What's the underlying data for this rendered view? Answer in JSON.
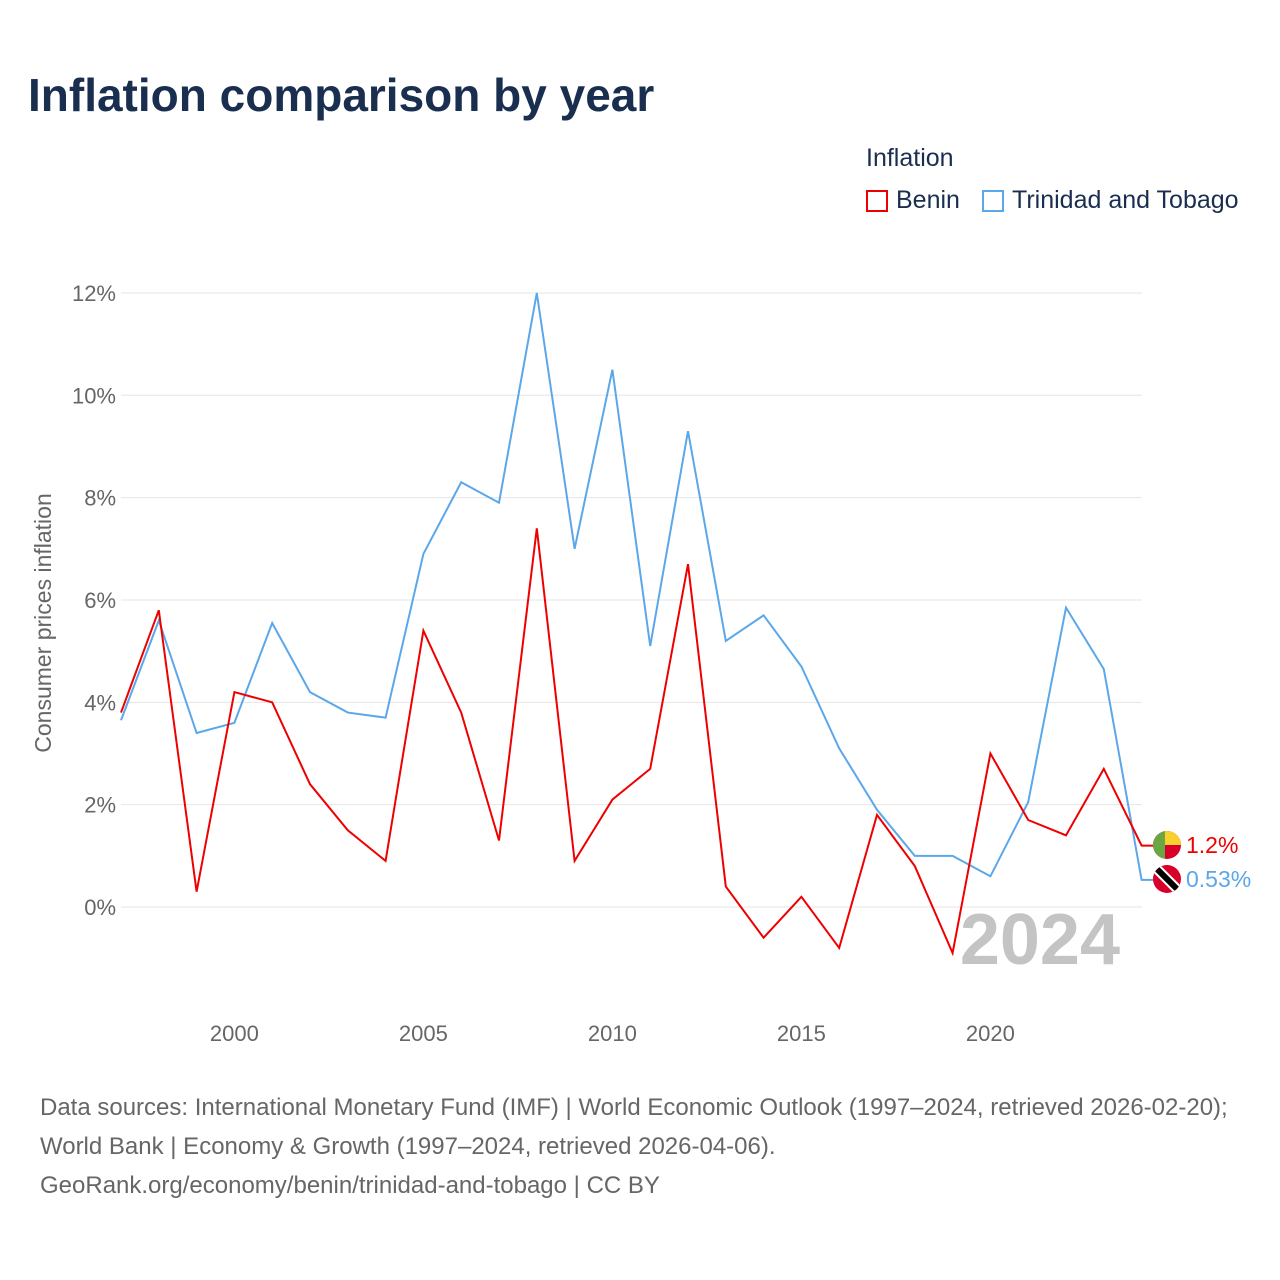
{
  "title": "Inflation comparison by year",
  "legend": {
    "title": "Inflation",
    "items": [
      "Benin",
      "Trinidad and Tobago"
    ]
  },
  "year_label": "2024",
  "source_lines": [
    "Data sources: International Monetary Fund (IMF) | World Economic Outlook (1997–2024, retrieved 2026-02-20); World Bank | Economy & Growth (1997–2024, retrieved 2026-04-06).",
    "GeoRank.org/economy/benin/trinidad-and-tobago | CC BY"
  ],
  "chart_data": {
    "type": "line",
    "ylabel": "Consumer prices inflation",
    "ylim": [
      -1.9,
      13
    ],
    "xlim": [
      1997,
      2024
    ],
    "yticks": [
      0,
      2,
      4,
      6,
      8,
      10,
      12
    ],
    "ytick_labels": [
      "0%",
      "2%",
      "4%",
      "6%",
      "8%",
      "10%",
      "12%"
    ],
    "xticks": [
      2000,
      2005,
      2010,
      2015,
      2020
    ],
    "x": [
      1997,
      1998,
      1999,
      2000,
      2001,
      2002,
      2003,
      2004,
      2005,
      2006,
      2007,
      2008,
      2009,
      2010,
      2011,
      2012,
      2013,
      2014,
      2015,
      2016,
      2017,
      2018,
      2019,
      2020,
      2021,
      2022,
      2023,
      2024
    ],
    "series": [
      {
        "name": "Benin",
        "color": "#ee0000",
        "end_label": "1.2%",
        "values": [
          3.8,
          5.8,
          0.3,
          4.2,
          4.0,
          2.4,
          1.5,
          0.9,
          5.4,
          3.8,
          1.3,
          7.4,
          0.9,
          2.1,
          2.7,
          6.7,
          0.4,
          -0.6,
          0.2,
          -0.8,
          1.8,
          0.8,
          -0.9,
          3.0,
          1.7,
          1.4,
          2.7,
          1.2
        ]
      },
      {
        "name": "Trinidad and Tobago",
        "color": "#5ba7ea",
        "end_label": "0.53%",
        "values": [
          3.65,
          5.6,
          3.4,
          3.6,
          5.55,
          4.2,
          3.8,
          3.7,
          6.9,
          8.3,
          7.9,
          12.0,
          7.0,
          10.5,
          5.1,
          9.3,
          5.2,
          5.7,
          4.7,
          3.1,
          1.9,
          1.0,
          1.0,
          0.6,
          2.05,
          5.85,
          4.65,
          0.53
        ]
      }
    ]
  }
}
